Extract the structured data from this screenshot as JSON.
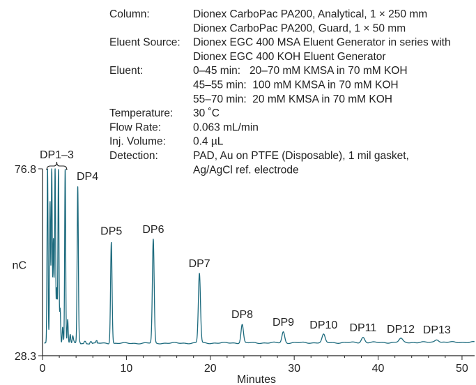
{
  "conditions": [
    {
      "label": "Column:",
      "lines": [
        "Dionex CarboPac PA200, Analytical, 1 × 250 mm",
        "Dionex CarboPac PA200, Guard, 1 × 50 mm"
      ]
    },
    {
      "label": "Eluent Source:",
      "lines": [
        "Dionex EGC 400 MSA Eluent Generator in series with",
        "Dionex EGC 400 KOH Eluent Generator"
      ]
    },
    {
      "label": "Eluent:",
      "lines": [
        "0–45 min:   20–70 mM KMSA in 70 mM KOH",
        "45–55 min:  100 mM KMSA in 70 mM KOH",
        "55–70 min:  20 mM KMSA in 70 mM KOH"
      ]
    },
    {
      "label": "Temperature:",
      "lines": [
        "30 ˚C"
      ]
    },
    {
      "label": "Flow Rate:",
      "lines": [
        "0.063 mL/min"
      ]
    },
    {
      "label": "Inj. Volume:",
      "lines": [
        "0.4 µL"
      ]
    },
    {
      "label": "Detection:",
      "lines": [
        "PAD, Au on PTFE (Disposable), 1 mil gasket,",
        "Ag/AgCl ref. electrode"
      ]
    }
  ],
  "chart_data": {
    "type": "line",
    "xlabel": "Minutes",
    "ylabel": "nC",
    "xlim": [
      0,
      51.5
    ],
    "ylim": [
      28.3,
      76.8
    ],
    "xticks": [
      0,
      10,
      20,
      30,
      40,
      50
    ],
    "y_tick_labels": [
      "76.8",
      "28.3"
    ],
    "baseline": 30.6,
    "line_color": "#1c6a7d",
    "group_label": {
      "text": "DP1–3",
      "x_start": 0.5,
      "x_end": 2.9
    },
    "early_spikes": [
      {
        "x": 0.6,
        "y": 76.8
      },
      {
        "x": 0.9,
        "y": 68.0
      },
      {
        "x": 1.1,
        "y": 76.8
      },
      {
        "x": 1.3,
        "y": 58.0
      },
      {
        "x": 1.5,
        "y": 76.8
      },
      {
        "x": 1.7,
        "y": 45.0
      },
      {
        "x": 1.9,
        "y": 76.8
      },
      {
        "x": 2.1,
        "y": 40.0
      },
      {
        "x": 2.4,
        "y": 35.0
      },
      {
        "x": 2.7,
        "y": 76.8
      },
      {
        "x": 3.0,
        "y": 37.0
      },
      {
        "x": 3.3,
        "y": 33.0
      },
      {
        "x": 3.6,
        "y": 32.0
      },
      {
        "x": 4.1,
        "y": 31.5
      }
    ],
    "peaks": [
      {
        "name": "DP4",
        "x": 4.2,
        "y": 71.8
      },
      {
        "name": "DP5",
        "x": 8.2,
        "y": 57.5
      },
      {
        "name": "DP6",
        "x": 13.2,
        "y": 58.0
      },
      {
        "name": "DP7",
        "x": 18.7,
        "y": 49.0
      },
      {
        "name": "DP8",
        "x": 23.8,
        "y": 35.5
      },
      {
        "name": "DP9",
        "x": 28.7,
        "y": 33.5
      },
      {
        "name": "DP10",
        "x": 33.5,
        "y": 32.7
      },
      {
        "name": "DP11",
        "x": 38.2,
        "y": 32.0
      },
      {
        "name": "DP12",
        "x": 42.7,
        "y": 31.6
      },
      {
        "name": "DP13",
        "x": 47.0,
        "y": 31.4
      }
    ]
  }
}
